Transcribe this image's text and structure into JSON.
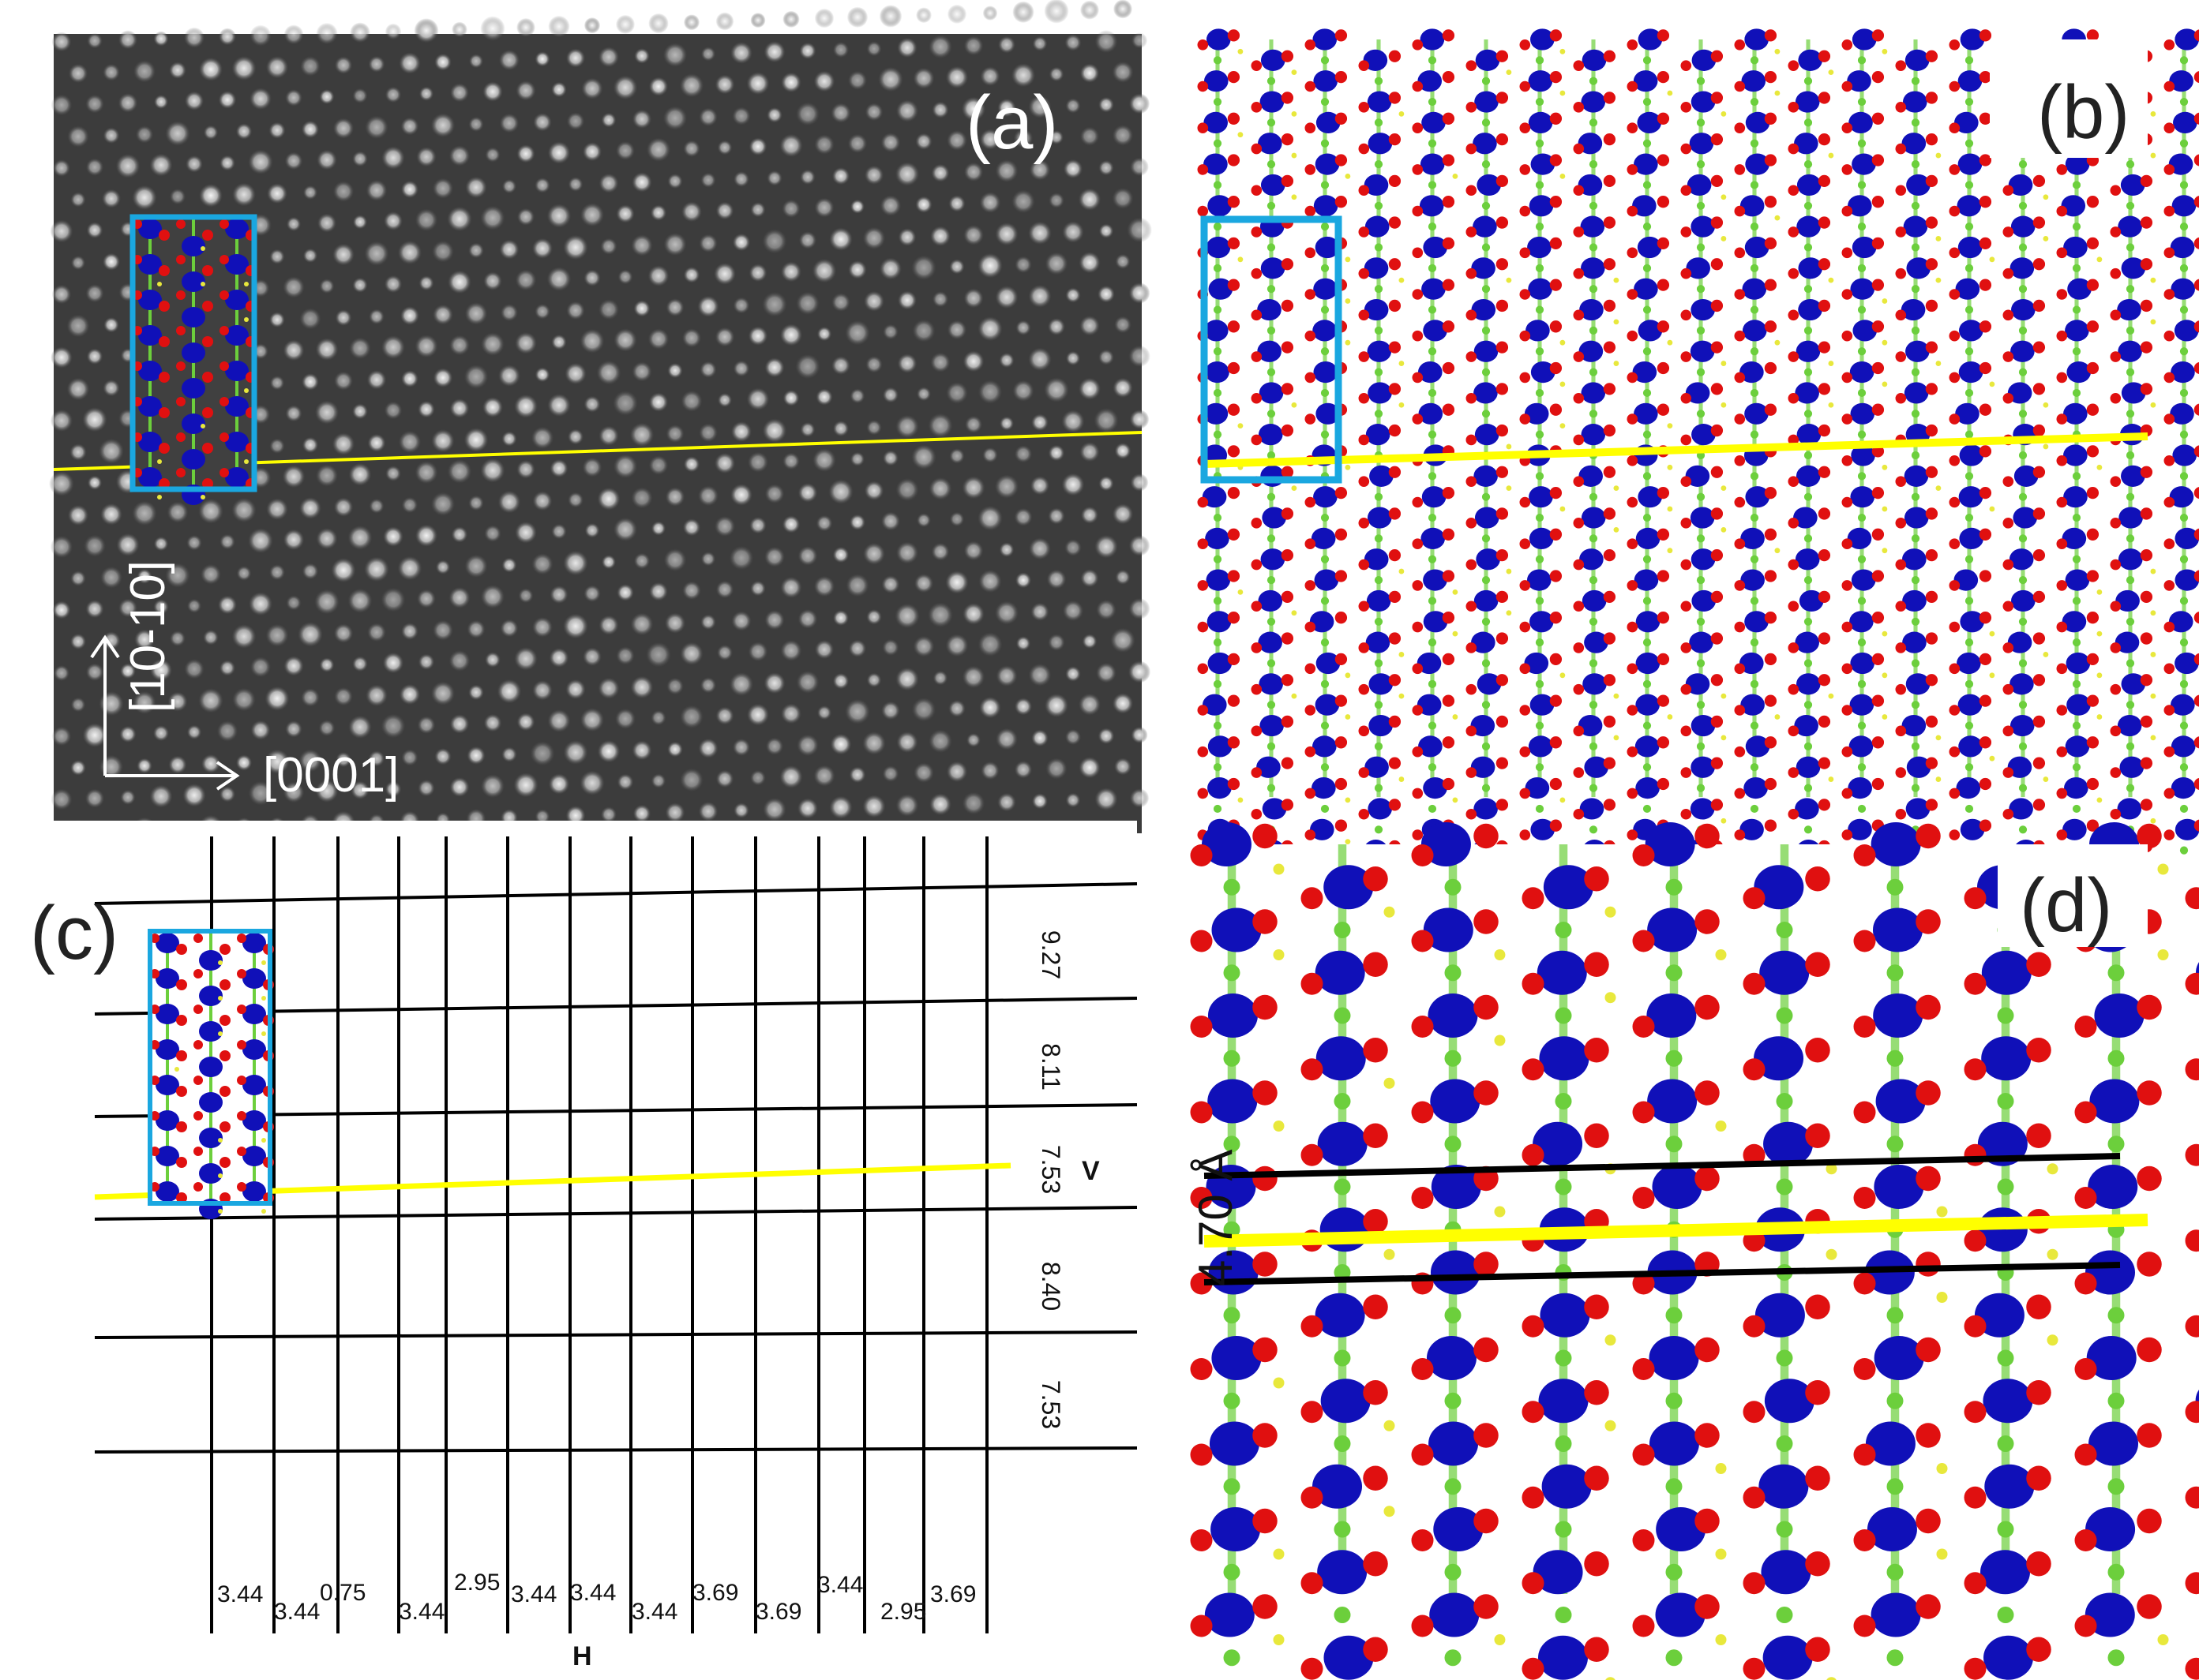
{
  "figure": {
    "panels": {
      "a": {
        "label": "(a)",
        "axis_vertical": "[10-10]",
        "axis_horizontal": "[0001]"
      },
      "b": {
        "label": "(b)"
      },
      "c": {
        "label": "(c)",
        "v_marker": "V",
        "h_marker": "H",
        "v_spacings": [
          "9.27",
          "8.11",
          "7.53",
          "8.40",
          "7.53"
        ],
        "h_spacings": [
          "3.44",
          "3.44",
          "0.75",
          "3.44",
          "2.95",
          "3.44",
          "3.44",
          "3.44",
          "3.69",
          "3.69",
          "3.44",
          "2.95",
          "3.69"
        ]
      },
      "d": {
        "label": "(d)",
        "distance_label": "4.70 Å"
      }
    },
    "colors": {
      "unit_cell_box": "#1aa7e0",
      "boundary_line": "#ffff00",
      "atom_large": "#1010b8",
      "atom_medium": "#e01010",
      "atom_small_green": "#6ccf3c",
      "atom_small_yellow": "#e8e83c",
      "grid_line": "#000000"
    }
  }
}
